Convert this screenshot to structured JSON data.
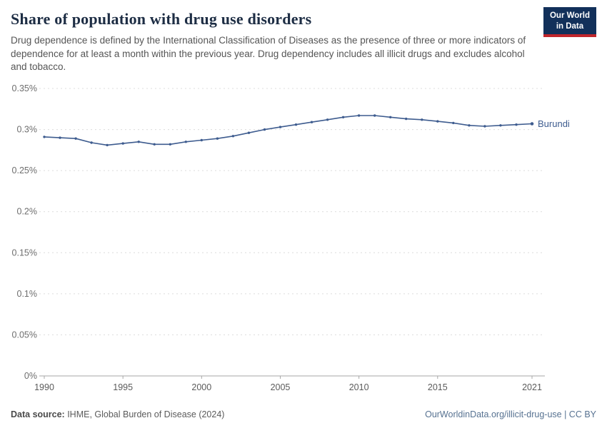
{
  "header": {
    "title": "Share of population with drug use disorders",
    "subtitle": "Drug dependence is defined by the International Classification of Diseases as the presence of three or more indicators of dependence for at least a month within the previous year. Drug dependency includes all illicit drugs and excludes alcohol and tobacco.",
    "logo": {
      "line1": "Our World",
      "line2": "in Data"
    }
  },
  "footer": {
    "source_label": "Data source:",
    "source_text": " IHME, Global Burden of Disease (2024)",
    "link_text": "OurWorldinData.org/illicit-drug-use | CC BY"
  },
  "chart_data": {
    "type": "line",
    "title": "Share of population with drug use disorders",
    "xlabel": "",
    "ylabel": "",
    "grid": "horizontal-dashed",
    "legend_position": "end-of-line-label",
    "xlim": [
      1990,
      2021
    ],
    "ylim": [
      0,
      0.35
    ],
    "xticks": [
      1990,
      1995,
      2000,
      2005,
      2010,
      2015,
      2021
    ],
    "yticks": [
      {
        "value": 0,
        "label": "0%"
      },
      {
        "value": 0.05,
        "label": "0.05%"
      },
      {
        "value": 0.1,
        "label": "0.1%"
      },
      {
        "value": 0.15,
        "label": "0.15%"
      },
      {
        "value": 0.2,
        "label": "0.2%"
      },
      {
        "value": 0.25,
        "label": "0.25%"
      },
      {
        "value": 0.3,
        "label": "0.3%"
      },
      {
        "value": 0.35,
        "label": "0.35%"
      }
    ],
    "x": [
      1990,
      1991,
      1992,
      1993,
      1994,
      1995,
      1996,
      1997,
      1998,
      1999,
      2000,
      2001,
      2002,
      2003,
      2004,
      2005,
      2006,
      2007,
      2008,
      2009,
      2010,
      2011,
      2012,
      2013,
      2014,
      2015,
      2016,
      2017,
      2018,
      2019,
      2020,
      2021
    ],
    "series": [
      {
        "name": "Burundi",
        "color": "#3e5c8f",
        "unit": "%",
        "values": [
          0.291,
          0.29,
          0.289,
          0.284,
          0.281,
          0.283,
          0.285,
          0.282,
          0.282,
          0.285,
          0.287,
          0.289,
          0.292,
          0.296,
          0.3,
          0.303,
          0.306,
          0.309,
          0.312,
          0.315,
          0.317,
          0.317,
          0.315,
          0.313,
          0.312,
          0.31,
          0.308,
          0.305,
          0.304,
          0.305,
          0.306,
          0.307
        ]
      }
    ]
  }
}
